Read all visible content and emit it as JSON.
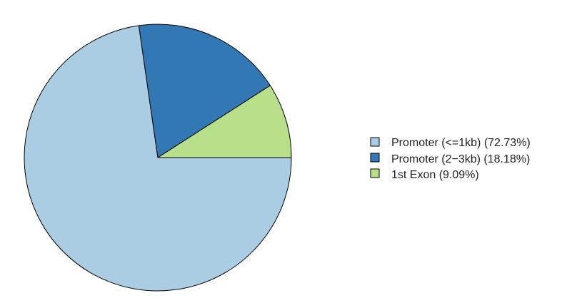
{
  "chart_data": {
    "type": "pie",
    "direction": "clockwise",
    "start_angle_deg": 0,
    "slices": [
      {
        "label": "Promoter (<=1kb) (72.73%)",
        "value": 72.73,
        "color": "#ABCDE3"
      },
      {
        "label": "Promoter (2−3kb) (18.18%)",
        "value": 18.18,
        "color": "#3278B4"
      },
      {
        "label": "1st Exon (9.09%)",
        "value": 9.09,
        "color": "#B8E08A"
      }
    ],
    "legend_position": "right",
    "outline_color": "#000000"
  }
}
